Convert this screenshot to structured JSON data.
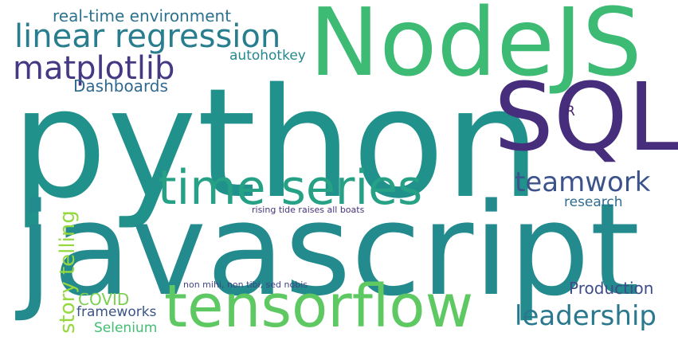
{
  "words": {
    "python": {
      "text": "python",
      "color": "#21918c"
    },
    "javascript": {
      "text": "javascript",
      "color": "#238a8d"
    },
    "nodejs": {
      "text": "NodeJS",
      "color": "#3dba73"
    },
    "sql": {
      "text": "SQL",
      "color": "#472e7c"
    },
    "tensorflow": {
      "text": "tensorflow",
      "color": "#5ec962"
    },
    "time_series": {
      "text": "time series",
      "color": "#26a185"
    },
    "linear": {
      "text": "linear regression",
      "color": "#287d8e"
    },
    "matplotlib": {
      "text": "matplotlib",
      "color": "#443983"
    },
    "leadership": {
      "text": "leadership",
      "color": "#2a788e"
    },
    "teamwork": {
      "text": "teamwork",
      "color": "#3b528b"
    },
    "realtime": {
      "text": "real-time environment",
      "color": "#2c728e"
    },
    "dashboards": {
      "text": "Dashboards",
      "color": "#31688e"
    },
    "autohotkey": {
      "text": "autohotkey",
      "color": "#24878e"
    },
    "production": {
      "text": "Production",
      "color": "#3e4c8a"
    },
    "research": {
      "text": "research",
      "color": "#2f6b8e"
    },
    "covid": {
      "text": "COVID",
      "color": "#7ad151"
    },
    "frameworks": {
      "text": "frameworks",
      "color": "#3a538b"
    },
    "selenium": {
      "text": "Selenium",
      "color": "#42be71"
    },
    "r": {
      "text": "R",
      "color": "#482475"
    },
    "rising": {
      "text": "rising tide raises all boats",
      "color": "#46337e"
    },
    "nonmihi": {
      "text": "non mihi, non tibi, sed nobis",
      "color": "#414487"
    },
    "storytelling": {
      "text": "story telling",
      "color": "#95d840"
    }
  }
}
